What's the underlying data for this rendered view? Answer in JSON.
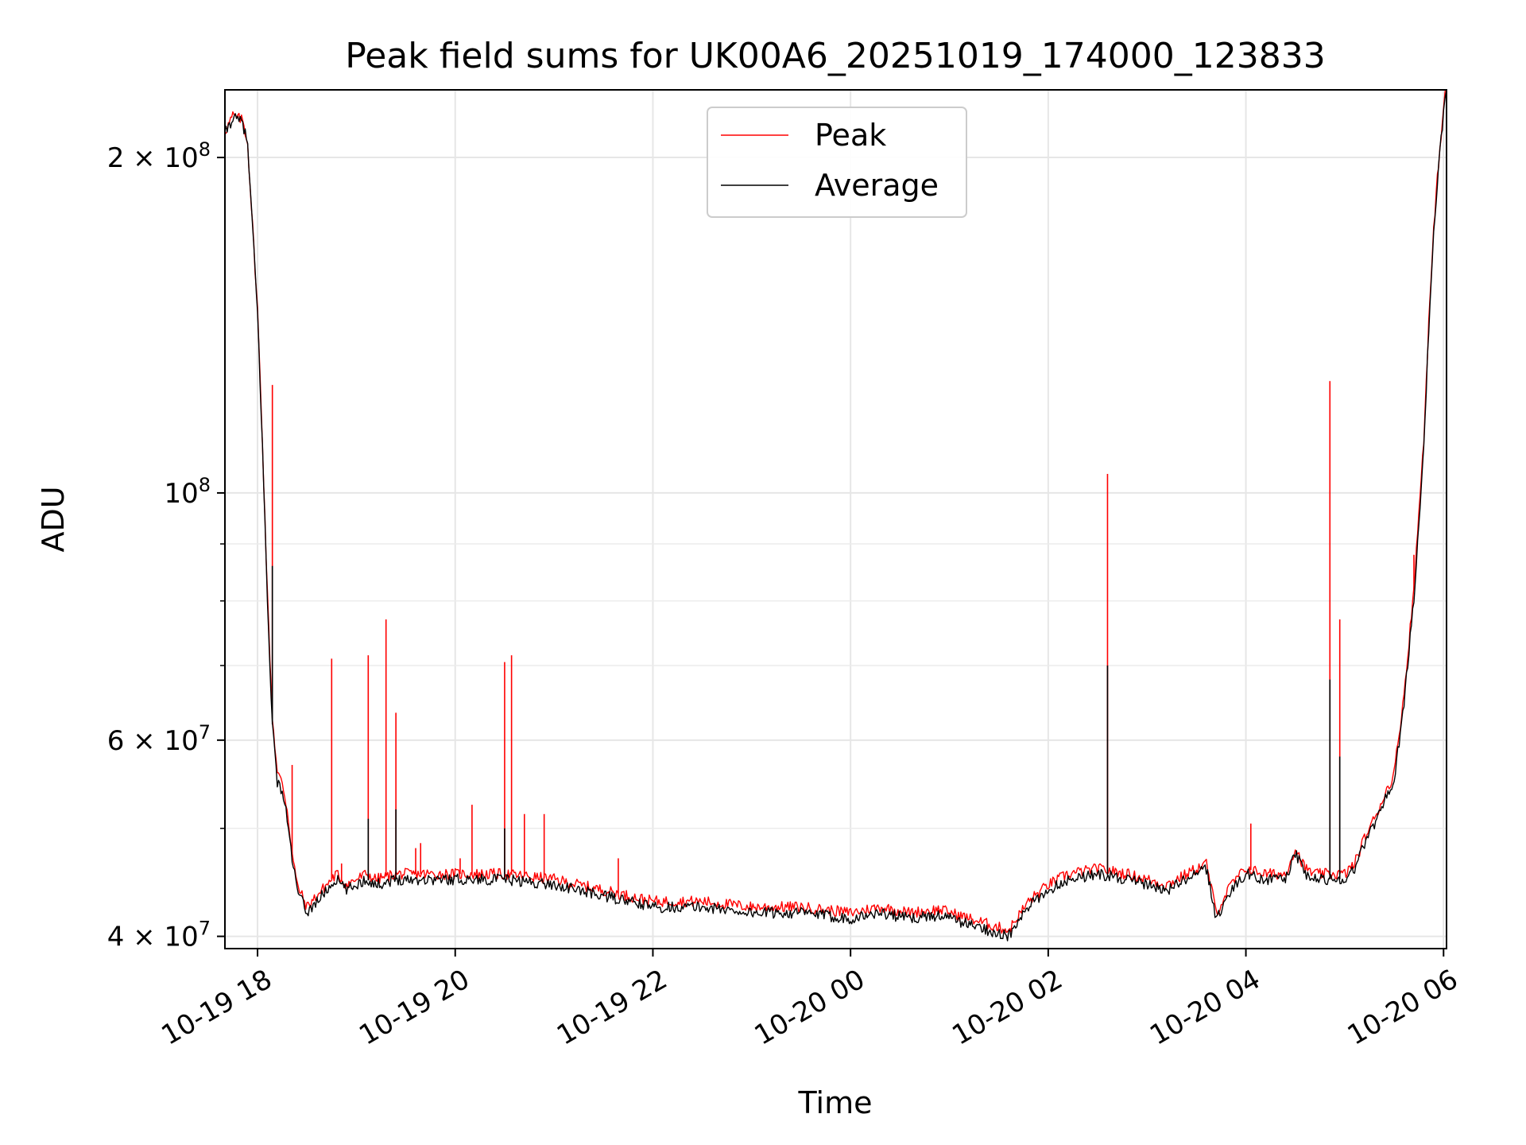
{
  "chart_data": {
    "type": "line",
    "title": "Peak field sums for UK00A6_20251019_174000_123833",
    "xlabel": "Time",
    "ylabel": "ADU",
    "yscale": "log",
    "xlim_hours": [
      -0.33,
      12.03
    ],
    "ylim": [
      39000000,
      230000000
    ],
    "grid": true,
    "legend_position": "upper center",
    "x_ticks": [
      {
        "hours": 0,
        "label": "10-19 18"
      },
      {
        "hours": 2,
        "label": "10-19 20"
      },
      {
        "hours": 4,
        "label": "10-19 22"
      },
      {
        "hours": 6,
        "label": "10-20 00"
      },
      {
        "hours": 8,
        "label": "10-20 02"
      },
      {
        "hours": 10,
        "label": "10-20 04"
      },
      {
        "hours": 12,
        "label": "10-20 06"
      }
    ],
    "y_major_ticks": [
      {
        "value": 40000000,
        "label_base": "4 × 10",
        "label_exp": "7"
      },
      {
        "value": 60000000,
        "label_base": "6 × 10",
        "label_exp": "7"
      },
      {
        "value": 100000000,
        "label_base": "10",
        "label_exp": "8"
      },
      {
        "value": 200000000,
        "label_base": "2 × 10",
        "label_exp": "8"
      }
    ],
    "y_minor_ticks": [
      50000000,
      70000000,
      80000000,
      90000000
    ],
    "x_hours": [
      -0.33,
      -0.25,
      -0.15,
      -0.1,
      0.0,
      0.05,
      0.1,
      0.15,
      0.2,
      0.25,
      0.3,
      0.35,
      0.4,
      0.5,
      0.6,
      0.7,
      0.8,
      0.9,
      1.0,
      1.1,
      1.2,
      1.4,
      1.6,
      1.8,
      2.0,
      2.5,
      3.0,
      3.5,
      4.0,
      4.5,
      5.0,
      5.5,
      6.0,
      6.3,
      6.6,
      6.9,
      7.2,
      7.4,
      7.6,
      7.8,
      8.0,
      8.2,
      8.5,
      8.8,
      9.2,
      9.5,
      9.6,
      9.7,
      9.85,
      10.0,
      10.2,
      10.4,
      10.5,
      10.6,
      10.7,
      10.8,
      11.0,
      11.1,
      11.2,
      11.3,
      11.4,
      11.5,
      11.6,
      11.7,
      11.8,
      11.85,
      11.9,
      11.95,
      12.0,
      12.03
    ],
    "series": [
      {
        "name": "Average",
        "color": "#000000",
        "values": [
          210000000,
          217000000,
          215000000,
          205000000,
          145000000,
          110000000,
          80000000,
          62000000,
          55000000,
          54000000,
          51000000,
          47000000,
          44000000,
          42000000,
          43000000,
          44000000,
          45000000,
          44000000,
          44500000,
          45000000,
          44500000,
          45000000,
          45000000,
          45000000,
          45000000,
          45000000,
          44500000,
          43500000,
          42500000,
          42500000,
          42000000,
          42000000,
          41500000,
          42000000,
          41500000,
          41800000,
          41000000,
          40500000,
          40000000,
          42500000,
          44000000,
          45000000,
          45500000,
          45000000,
          44000000,
          45500000,
          46000000,
          41500000,
          44000000,
          45500000,
          45000000,
          45000000,
          47500000,
          45500000,
          45000000,
          45000000,
          45000000,
          46000000,
          48500000,
          50500000,
          53000000,
          55000000,
          65000000,
          80000000,
          110000000,
          140000000,
          170000000,
          195000000,
          220000000,
          230000000
        ]
      },
      {
        "name": "Peak",
        "color": "#ff0000",
        "values": [
          211000000,
          218000000,
          216000000,
          206000000,
          146000000,
          111000000,
          81000000,
          63000000,
          56000000,
          55000000,
          52000000,
          47500000,
          44500000,
          42500000,
          43500000,
          44500000,
          45500000,
          44500000,
          45000000,
          45500000,
          45000000,
          45500000,
          45500000,
          45500000,
          45500000,
          45500000,
          45000000,
          44000000,
          43000000,
          43000000,
          42500000,
          42500000,
          42000000,
          42500000,
          42000000,
          42300000,
          41500000,
          41000000,
          40500000,
          43000000,
          44500000,
          45500000,
          46000000,
          45500000,
          44500000,
          46000000,
          46500000,
          42000000,
          44500000,
          46000000,
          45500000,
          45500000,
          48000000,
          46000000,
          45500000,
          45500000,
          45500000,
          46500000,
          49000000,
          51000000,
          53500000,
          56000000,
          66000000,
          82000000,
          112000000,
          142000000,
          172000000,
          198000000,
          222000000,
          232000000
        ]
      }
    ],
    "peak_spikes": [
      {
        "hours": 0.15,
        "value": 125000000
      },
      {
        "hours": 0.35,
        "value": 57000000
      },
      {
        "hours": 0.75,
        "value": 71000000
      },
      {
        "hours": 0.85,
        "value": 46500000
      },
      {
        "hours": 1.12,
        "value": 71500000
      },
      {
        "hours": 1.3,
        "value": 77000000
      },
      {
        "hours": 1.4,
        "value": 63500000
      },
      {
        "hours": 1.6,
        "value": 48000000
      },
      {
        "hours": 1.65,
        "value": 48500000
      },
      {
        "hours": 2.05,
        "value": 47000000
      },
      {
        "hours": 2.17,
        "value": 52500000
      },
      {
        "hours": 2.5,
        "value": 70500000
      },
      {
        "hours": 2.57,
        "value": 71500000
      },
      {
        "hours": 2.7,
        "value": 51500000
      },
      {
        "hours": 2.9,
        "value": 51500000
      },
      {
        "hours": 3.65,
        "value": 47000000
      },
      {
        "hours": 8.6,
        "value": 104000000
      },
      {
        "hours": 10.05,
        "value": 50500000
      },
      {
        "hours": 10.85,
        "value": 126000000
      },
      {
        "hours": 10.95,
        "value": 77000000
      },
      {
        "hours": 11.7,
        "value": 88000000
      }
    ],
    "average_spikes": [
      {
        "hours": 0.15,
        "value": 86000000
      },
      {
        "hours": 1.12,
        "value": 51000000
      },
      {
        "hours": 1.4,
        "value": 52000000
      },
      {
        "hours": 2.5,
        "value": 50000000
      },
      {
        "hours": 8.6,
        "value": 70000000
      },
      {
        "hours": 10.85,
        "value": 68000000
      },
      {
        "hours": 10.95,
        "value": 58000000
      }
    ]
  }
}
